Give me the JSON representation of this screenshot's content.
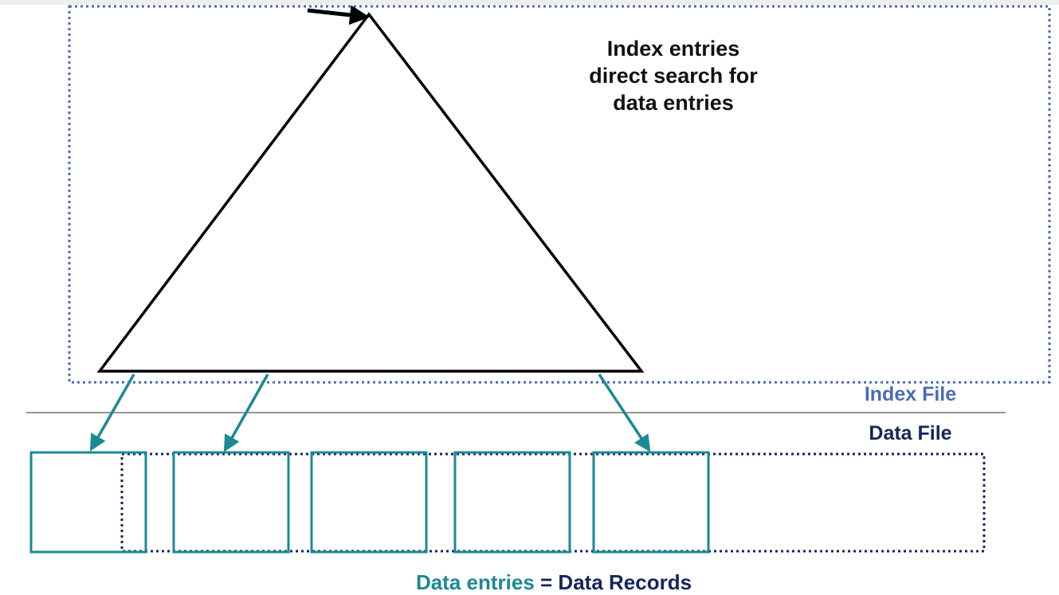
{
  "index_note": {
    "lines": [
      "Index entries",
      "direct search for",
      "data entries"
    ]
  },
  "index_file_label": "Index File",
  "data_file_label": "Data File",
  "caption": {
    "part1": "Data entries",
    "equals": " = ",
    "part2": "Data Records"
  },
  "colors": {
    "teal": "#1a8a93",
    "navy": "#16255a",
    "index_label_blue": "#4a6bb8",
    "index_box_dots": "#4d6ab5",
    "triangle": "#000000"
  },
  "data_entry_boxes": 5,
  "pointer_arrows": 3
}
